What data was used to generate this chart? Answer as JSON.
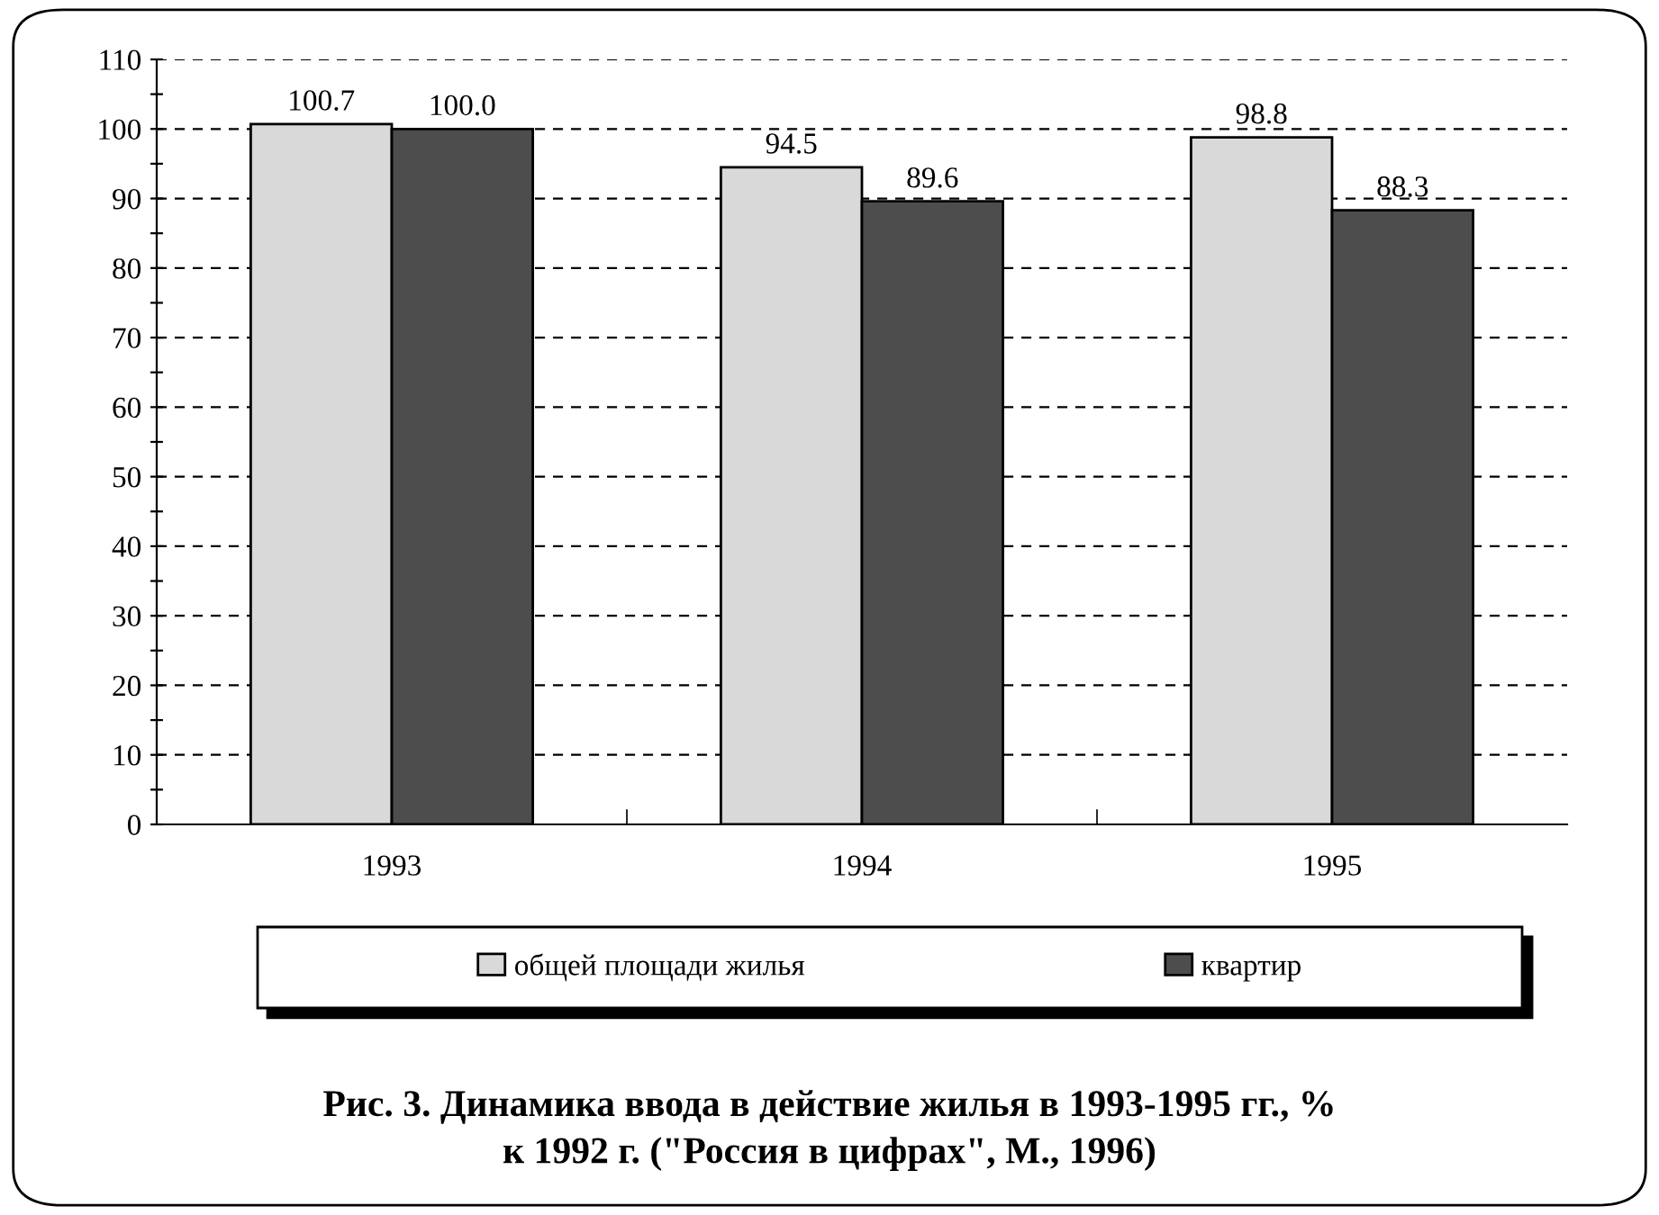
{
  "chart_data": {
    "type": "bar",
    "categories": [
      "1993",
      "1994",
      "1995"
    ],
    "series": [
      {
        "name": "общей площади жилья",
        "color": "#d9d9d9",
        "values": [
          100.7,
          94.5,
          98.8
        ],
        "value_labels": [
          "100.7",
          "94.5",
          "98.8"
        ]
      },
      {
        "name": "квартир",
        "color": "#4d4d4d",
        "values": [
          100.0,
          89.6,
          88.3
        ],
        "value_labels": [
          "100.0",
          "89.6",
          "88.3"
        ]
      }
    ],
    "ylim": [
      0,
      110
    ],
    "yticks": [
      0,
      {
        "value": 5,
        "label": null
      },
      10,
      {
        "value": 15,
        "label": null
      },
      20,
      {
        "value": 25,
        "label": null
      },
      30,
      {
        "value": 35,
        "label": null
      },
      40,
      {
        "value": 45,
        "label": null
      },
      50,
      {
        "value": 55,
        "label": null
      },
      60,
      {
        "value": 65,
        "label": null
      },
      70,
      {
        "value": 75,
        "label": null
      },
      80,
      {
        "value": 85,
        "label": null
      },
      90,
      {
        "value": 95,
        "label": null
      },
      100,
      {
        "value": 105,
        "label": null
      },
      110
    ],
    "grid": "y",
    "legend": "bottom",
    "annotations": [
      "Рис. 3. Динамика ввода в действие жилья в 1993-1995 гг., %\nк 1992 г. (\"Россия в цифрах\", М., 1996)"
    ]
  }
}
